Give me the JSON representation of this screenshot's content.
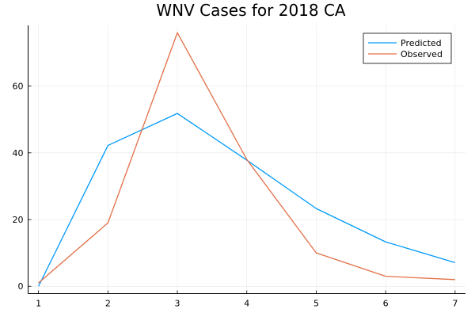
{
  "chart_data": {
    "type": "line",
    "title": "WNV Cases for 2018 CA",
    "xlabel": "",
    "ylabel": "",
    "x": [
      1,
      2,
      3,
      4,
      5,
      6,
      7
    ],
    "xlim": [
      0.85,
      7.15
    ],
    "ylim": [
      -2.2,
      78.2
    ],
    "xticks": [
      1,
      2,
      3,
      4,
      5,
      6,
      7
    ],
    "yticks": [
      0,
      20,
      40,
      60
    ],
    "grid": true,
    "legend_position": "top-right",
    "series": [
      {
        "name": "Predicted",
        "color": "#009AFA",
        "values": [
          0,
          42.2,
          51.8,
          37.8,
          23.3,
          13.3,
          7.1
        ]
      },
      {
        "name": "Observed",
        "color": "#E26F46",
        "values": [
          1,
          19,
          76,
          38,
          10,
          3,
          2
        ]
      }
    ]
  }
}
